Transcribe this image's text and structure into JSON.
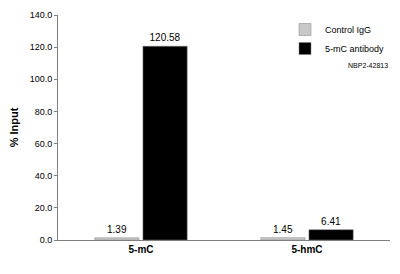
{
  "chart_data": {
    "type": "bar",
    "y_label": "% Input",
    "categories": [
      "5-mC",
      "5-hmC"
    ],
    "series": [
      {
        "name": "Control IgG",
        "color": "#c8c8c8",
        "values": [
          1.39,
          1.45
        ]
      },
      {
        "name": "5-mC antibody",
        "color": "#000000",
        "values": [
          120.58,
          6.41
        ]
      }
    ],
    "ylim": [
      0,
      140
    ],
    "yticks": [
      {
        "value": 0,
        "label": "0.0"
      },
      {
        "value": 20,
        "label": "20.0"
      },
      {
        "value": 40,
        "label": "40.0"
      },
      {
        "value": 60,
        "label": "60.0"
      },
      {
        "value": 80,
        "label": "80.0"
      },
      {
        "value": 100,
        "label": "100.0"
      },
      {
        "value": 120,
        "label": "120.0"
      },
      {
        "value": 140,
        "label": "140.0"
      }
    ],
    "grid": false,
    "legend": "top right",
    "data_labels": true,
    "annotation": "NBP2-42813"
  }
}
